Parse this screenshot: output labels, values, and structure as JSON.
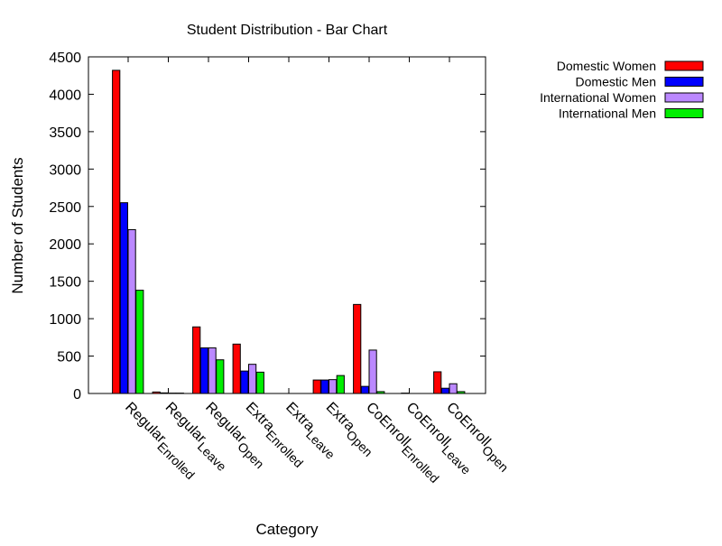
{
  "chart_data": {
    "type": "bar",
    "title": "Student Distribution - Bar Chart",
    "xlabel": "Category",
    "ylabel": "Number of Students",
    "ylim": [
      0,
      4500
    ],
    "yticks": [
      "0",
      "500",
      "1000",
      "1500",
      "2000",
      "2500",
      "3000",
      "3500",
      "4000",
      "4500"
    ],
    "grid": false,
    "legend_position": "top-right",
    "categories": [
      {
        "label": "Regular",
        "sub": "Enrolled"
      },
      {
        "label": "Regular",
        "sub": "Leave"
      },
      {
        "label": "Regular",
        "sub": "Open"
      },
      {
        "label": "Extra",
        "sub": "Enrolled"
      },
      {
        "label": "Extra",
        "sub": "Leave"
      },
      {
        "label": "Extra",
        "sub": "Open"
      },
      {
        "label": "CoEnroll",
        "sub": "Enrolled"
      },
      {
        "label": "CoEnroll",
        "sub": "Leave"
      },
      {
        "label": "CoEnroll",
        "sub": "Open"
      }
    ],
    "series": [
      {
        "name": "Domestic Women",
        "color": "#ff0000",
        "values": [
          4320,
          20,
          890,
          660,
          0,
          180,
          1190,
          0,
          290
        ]
      },
      {
        "name": "Domestic Men",
        "color": "#0000ff",
        "values": [
          2550,
          8,
          610,
          300,
          0,
          180,
          95,
          5,
          70
        ]
      },
      {
        "name": "International Women",
        "color": "#bb88ff",
        "values": [
          2190,
          5,
          610,
          390,
          0,
          185,
          580,
          0,
          130
        ]
      },
      {
        "name": "International Men",
        "color": "#00ee00",
        "values": [
          1380,
          5,
          450,
          285,
          0,
          240,
          25,
          0,
          25
        ]
      }
    ]
  }
}
